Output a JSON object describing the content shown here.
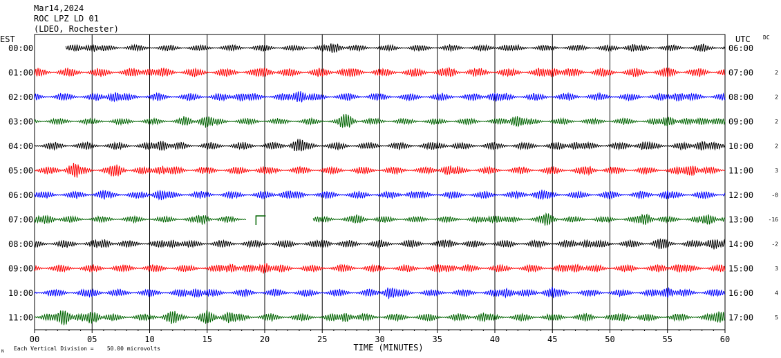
{
  "header": {
    "date": "Mar14,2024",
    "station": "ROC LPZ LD 01",
    "network": "(LDEO, Rochester)"
  },
  "left_tz": "EST",
  "right_tz": "UTC",
  "dc_label": "DC",
  "footer": {
    "scale_note": "Each Vertical Division =    50.00 microvolts",
    "mark": "N"
  },
  "chart_data": {
    "type": "line",
    "xlabel": "TIME (MINUTES)",
    "xlim": [
      0,
      60
    ],
    "x_ticks": [
      "00",
      "05",
      "10",
      "15",
      "20",
      "25",
      "30",
      "35",
      "40",
      "45",
      "50",
      "55",
      "60"
    ],
    "grid": true,
    "colors": [
      "#000000",
      "#ff0000",
      "#0000ff",
      "#006400"
    ],
    "rows": [
      {
        "est": "00:00",
        "utc": "06:00",
        "dc": "",
        "color": "#000000",
        "start_min": 2.7,
        "amp": 5,
        "bursts": [
          [
            5,
            6
          ],
          [
            26,
            8
          ],
          [
            41,
            5
          ],
          [
            52,
            6
          ],
          [
            58,
            7
          ]
        ]
      },
      {
        "est": "01:00",
        "utc": "07:00",
        "dc": "2",
        "color": "#ff0000",
        "amp": 7,
        "bursts": [
          [
            3,
            7
          ],
          [
            10,
            6
          ],
          [
            20,
            7
          ],
          [
            27,
            6
          ],
          [
            36,
            8
          ],
          [
            45,
            7
          ],
          [
            55,
            8
          ]
        ]
      },
      {
        "est": "02:00",
        "utc": "08:00",
        "dc": "2",
        "color": "#0000ff",
        "amp": 6,
        "bursts": [
          [
            7,
            8
          ],
          [
            18,
            7
          ],
          [
            23,
            9
          ],
          [
            30,
            6
          ],
          [
            40,
            7
          ],
          [
            49,
            6
          ],
          [
            56,
            7
          ]
        ]
      },
      {
        "est": "03:00",
        "utc": "09:00",
        "dc": "2",
        "color": "#006400",
        "amp": 5,
        "bursts": [
          [
            13,
            8
          ],
          [
            15,
            10
          ],
          [
            27,
            13
          ],
          [
            42,
            10
          ],
          [
            55,
            8
          ],
          [
            58,
            6
          ]
        ]
      },
      {
        "est": "04:00",
        "utc": "10:00",
        "dc": "2",
        "color": "#000000",
        "amp": 6,
        "bursts": [
          [
            11,
            8
          ],
          [
            23,
            11
          ],
          [
            35,
            6
          ],
          [
            47,
            6
          ],
          [
            53,
            7
          ],
          [
            58,
            8
          ]
        ]
      },
      {
        "est": "05:00",
        "utc": "11:00",
        "dc": "3",
        "color": "#ff0000",
        "amp": 6,
        "bursts": [
          [
            3.5,
            12
          ],
          [
            7,
            11
          ],
          [
            11,
            7
          ],
          [
            20,
            6
          ],
          [
            36,
            8
          ],
          [
            48,
            7
          ],
          [
            57,
            9
          ]
        ]
      },
      {
        "est": "06:00",
        "utc": "12:00",
        "dc": "-0",
        "color": "#0000ff",
        "amp": 6,
        "bursts": [
          [
            6,
            7
          ],
          [
            11,
            8
          ],
          [
            22,
            7
          ],
          [
            33,
            6
          ],
          [
            44,
            8
          ],
          [
            55,
            7
          ]
        ]
      },
      {
        "est": "07:00",
        "utc": "13:00",
        "dc": "-16",
        "color": "#006400",
        "amp": 5,
        "gap": [
          18.4,
          24.2
        ],
        "bursts": [
          [
            1,
            7
          ],
          [
            14.5,
            8
          ],
          [
            28,
            8
          ],
          [
            40,
            7
          ],
          [
            44.5,
            10
          ],
          [
            53,
            9
          ],
          [
            58.5,
            9
          ]
        ]
      },
      {
        "est": "08:00",
        "utc": "14:00",
        "dc": "-2",
        "color": "#000000",
        "amp": 6,
        "bursts": [
          [
            6,
            7
          ],
          [
            12,
            6
          ],
          [
            25,
            7
          ],
          [
            36,
            6
          ],
          [
            48,
            6
          ],
          [
            54.5,
            10
          ],
          [
            59,
            9
          ]
        ]
      },
      {
        "est": "09:00",
        "utc": "15:00",
        "dc": "3",
        "color": "#ff0000",
        "amp": 6,
        "bursts": [
          [
            5,
            6
          ],
          [
            17,
            7
          ],
          [
            20,
            8
          ],
          [
            36,
            6
          ],
          [
            47,
            7
          ],
          [
            56,
            7
          ]
        ]
      },
      {
        "est": "10:00",
        "utc": "16:00",
        "dc": "4",
        "color": "#0000ff",
        "amp": 6,
        "bursts": [
          [
            5,
            7
          ],
          [
            14,
            7
          ],
          [
            31,
            10
          ],
          [
            41,
            8
          ],
          [
            45,
            9
          ],
          [
            55,
            8
          ]
        ]
      },
      {
        "est": "11:00",
        "utc": "17:00",
        "dc": "5",
        "color": "#006400",
        "amp": 6,
        "bursts": [
          [
            2.5,
            13
          ],
          [
            5,
            10
          ],
          [
            12,
            11
          ],
          [
            15,
            12
          ],
          [
            17,
            10
          ],
          [
            27,
            7
          ],
          [
            39,
            7
          ],
          [
            51,
            7
          ],
          [
            59.5,
            10
          ]
        ]
      }
    ]
  }
}
